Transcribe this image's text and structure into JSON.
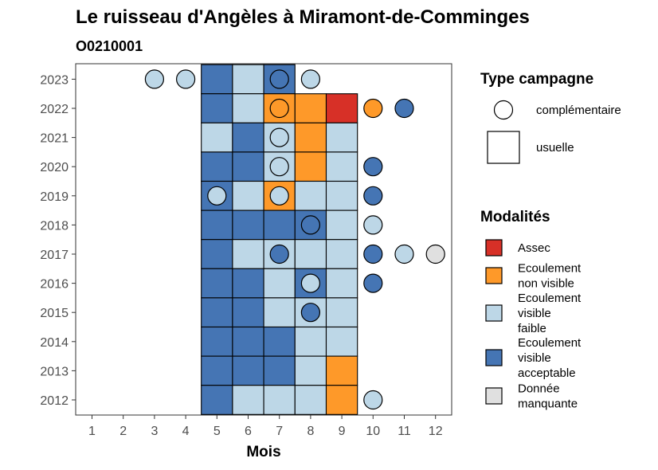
{
  "chart_data": {
    "type": "heatmap",
    "title": "Le ruisseau d'Angèles à Miramont-de-Comminges",
    "subtitle": "O0210001",
    "xlabel": "Mois",
    "ylabel": "",
    "x_ticks": [
      "1",
      "2",
      "3",
      "4",
      "5",
      "6",
      "7",
      "8",
      "9",
      "10",
      "11",
      "12"
    ],
    "y_ticks": [
      "2012",
      "2013",
      "2014",
      "2015",
      "2016",
      "2017",
      "2018",
      "2019",
      "2020",
      "2021",
      "2022",
      "2023"
    ],
    "colors": {
      "assec": "#d73027",
      "non_visible": "#fe9929",
      "faible": "#bdd7e7",
      "acceptable": "#4575b4",
      "manquante": "#e0e0e0"
    },
    "usuelle": [
      {
        "year": 2023,
        "month": 5,
        "mod": "acceptable"
      },
      {
        "year": 2023,
        "month": 6,
        "mod": "faible"
      },
      {
        "year": 2023,
        "month": 7,
        "mod": "acceptable"
      },
      {
        "year": 2022,
        "month": 5,
        "mod": "acceptable"
      },
      {
        "year": 2022,
        "month": 6,
        "mod": "faible"
      },
      {
        "year": 2022,
        "month": 7,
        "mod": "non_visible"
      },
      {
        "year": 2022,
        "month": 8,
        "mod": "non_visible"
      },
      {
        "year": 2022,
        "month": 9,
        "mod": "assec"
      },
      {
        "year": 2021,
        "month": 5,
        "mod": "faible"
      },
      {
        "year": 2021,
        "month": 6,
        "mod": "acceptable"
      },
      {
        "year": 2021,
        "month": 7,
        "mod": "faible"
      },
      {
        "year": 2021,
        "month": 8,
        "mod": "non_visible"
      },
      {
        "year": 2021,
        "month": 9,
        "mod": "faible"
      },
      {
        "year": 2020,
        "month": 5,
        "mod": "acceptable"
      },
      {
        "year": 2020,
        "month": 6,
        "mod": "acceptable"
      },
      {
        "year": 2020,
        "month": 7,
        "mod": "faible"
      },
      {
        "year": 2020,
        "month": 8,
        "mod": "non_visible"
      },
      {
        "year": 2020,
        "month": 9,
        "mod": "faible"
      },
      {
        "year": 2019,
        "month": 5,
        "mod": "acceptable"
      },
      {
        "year": 2019,
        "month": 6,
        "mod": "faible"
      },
      {
        "year": 2019,
        "month": 7,
        "mod": "non_visible"
      },
      {
        "year": 2019,
        "month": 8,
        "mod": "faible"
      },
      {
        "year": 2019,
        "month": 9,
        "mod": "faible"
      },
      {
        "year": 2018,
        "month": 5,
        "mod": "acceptable"
      },
      {
        "year": 2018,
        "month": 6,
        "mod": "acceptable"
      },
      {
        "year": 2018,
        "month": 7,
        "mod": "acceptable"
      },
      {
        "year": 2018,
        "month": 8,
        "mod": "acceptable"
      },
      {
        "year": 2018,
        "month": 9,
        "mod": "faible"
      },
      {
        "year": 2017,
        "month": 5,
        "mod": "acceptable"
      },
      {
        "year": 2017,
        "month": 6,
        "mod": "faible"
      },
      {
        "year": 2017,
        "month": 7,
        "mod": "faible"
      },
      {
        "year": 2017,
        "month": 8,
        "mod": "faible"
      },
      {
        "year": 2017,
        "month": 9,
        "mod": "faible"
      },
      {
        "year": 2016,
        "month": 5,
        "mod": "acceptable"
      },
      {
        "year": 2016,
        "month": 6,
        "mod": "acceptable"
      },
      {
        "year": 2016,
        "month": 7,
        "mod": "faible"
      },
      {
        "year": 2016,
        "month": 8,
        "mod": "acceptable"
      },
      {
        "year": 2016,
        "month": 9,
        "mod": "faible"
      },
      {
        "year": 2015,
        "month": 5,
        "mod": "acceptable"
      },
      {
        "year": 2015,
        "month": 6,
        "mod": "acceptable"
      },
      {
        "year": 2015,
        "month": 7,
        "mod": "faible"
      },
      {
        "year": 2015,
        "month": 8,
        "mod": "faible"
      },
      {
        "year": 2015,
        "month": 9,
        "mod": "faible"
      },
      {
        "year": 2014,
        "month": 5,
        "mod": "acceptable"
      },
      {
        "year": 2014,
        "month": 6,
        "mod": "acceptable"
      },
      {
        "year": 2014,
        "month": 7,
        "mod": "acceptable"
      },
      {
        "year": 2014,
        "month": 8,
        "mod": "faible"
      },
      {
        "year": 2014,
        "month": 9,
        "mod": "faible"
      },
      {
        "year": 2013,
        "month": 5,
        "mod": "acceptable"
      },
      {
        "year": 2013,
        "month": 6,
        "mod": "acceptable"
      },
      {
        "year": 2013,
        "month": 7,
        "mod": "acceptable"
      },
      {
        "year": 2013,
        "month": 8,
        "mod": "faible"
      },
      {
        "year": 2013,
        "month": 9,
        "mod": "non_visible"
      },
      {
        "year": 2012,
        "month": 5,
        "mod": "acceptable"
      },
      {
        "year": 2012,
        "month": 6,
        "mod": "faible"
      },
      {
        "year": 2012,
        "month": 7,
        "mod": "faible"
      },
      {
        "year": 2012,
        "month": 8,
        "mod": "faible"
      },
      {
        "year": 2012,
        "month": 9,
        "mod": "non_visible"
      }
    ],
    "complementaire": [
      {
        "year": 2023,
        "month": 3,
        "mod": "faible"
      },
      {
        "year": 2023,
        "month": 4,
        "mod": "faible"
      },
      {
        "year": 2023,
        "month": 7,
        "mod": "acceptable"
      },
      {
        "year": 2023,
        "month": 8,
        "mod": "faible"
      },
      {
        "year": 2022,
        "month": 7,
        "mod": "non_visible"
      },
      {
        "year": 2022,
        "month": 10,
        "mod": "non_visible"
      },
      {
        "year": 2022,
        "month": 11,
        "mod": "acceptable"
      },
      {
        "year": 2021,
        "month": 7,
        "mod": "faible"
      },
      {
        "year": 2020,
        "month": 7,
        "mod": "faible"
      },
      {
        "year": 2020,
        "month": 10,
        "mod": "acceptable"
      },
      {
        "year": 2019,
        "month": 5,
        "mod": "faible"
      },
      {
        "year": 2019,
        "month": 7,
        "mod": "faible"
      },
      {
        "year": 2019,
        "month": 10,
        "mod": "acceptable"
      },
      {
        "year": 2018,
        "month": 8,
        "mod": "acceptable"
      },
      {
        "year": 2018,
        "month": 10,
        "mod": "faible"
      },
      {
        "year": 2017,
        "month": 7,
        "mod": "acceptable"
      },
      {
        "year": 2017,
        "month": 10,
        "mod": "acceptable"
      },
      {
        "year": 2017,
        "month": 11,
        "mod": "faible"
      },
      {
        "year": 2017,
        "month": 12,
        "mod": "manquante"
      },
      {
        "year": 2016,
        "month": 8,
        "mod": "faible"
      },
      {
        "year": 2016,
        "month": 10,
        "mod": "acceptable"
      },
      {
        "year": 2015,
        "month": 8,
        "mod": "acceptable"
      },
      {
        "year": 2012,
        "month": 10,
        "mod": "faible"
      }
    ],
    "legend_type": {
      "title": "Type campagne",
      "items": [
        {
          "label": "complémentaire",
          "shape": "circle"
        },
        {
          "label": "usuelle",
          "shape": "square"
        }
      ]
    },
    "legend_modalites": {
      "title": "Modalités",
      "items": [
        {
          "key": "assec",
          "lines": [
            "Assec"
          ]
        },
        {
          "key": "non_visible",
          "lines": [
            "Ecoulement",
            "non visible"
          ]
        },
        {
          "key": "faible",
          "lines": [
            "Ecoulement",
            "visible",
            "faible"
          ]
        },
        {
          "key": "acceptable",
          "lines": [
            "Ecoulement",
            "visible",
            "acceptable"
          ]
        },
        {
          "key": "manquante",
          "lines": [
            "Donnée",
            "manquante"
          ]
        }
      ]
    }
  }
}
